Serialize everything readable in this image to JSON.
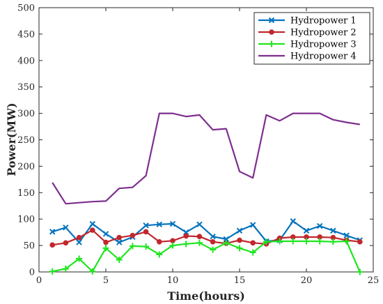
{
  "chart_data": {
    "type": "line",
    "xlabel": "Time(hours)",
    "ylabel": "Power(MW)",
    "xlim": [
      0,
      25
    ],
    "ylim": [
      0,
      500
    ],
    "xticks": [
      0,
      5,
      10,
      15,
      20,
      25
    ],
    "yticks": [
      0,
      50,
      100,
      150,
      200,
      250,
      300,
      350,
      400,
      450,
      500
    ],
    "grid": false,
    "legend": "top-right",
    "x": [
      1,
      2,
      3,
      4,
      5,
      6,
      7,
      8,
      9,
      10,
      11,
      12,
      13,
      14,
      15,
      16,
      17,
      18,
      19,
      20,
      21,
      22,
      23,
      24
    ],
    "series": [
      {
        "name": "Hydropower 1",
        "color": "#0072BD",
        "marker": "x-mark",
        "values": [
          76,
          84,
          56,
          91,
          72,
          56,
          66,
          88,
          90,
          91,
          75,
          90,
          67,
          62,
          78,
          89,
          58,
          60,
          96,
          78,
          87,
          78,
          69,
          60
        ]
      },
      {
        "name": "Hydropower 2",
        "color": "#C1272D",
        "marker": "circle",
        "values": [
          51,
          55,
          65,
          79,
          56,
          65,
          69,
          76,
          57,
          59,
          68,
          67,
          57,
          54,
          60,
          55,
          53,
          64,
          66,
          66,
          66,
          65,
          60,
          57
        ]
      },
      {
        "name": "Hydropower 3",
        "color": "#1EE61E",
        "marker": "plus",
        "values": [
          1,
          6,
          25,
          1,
          45,
          23,
          49,
          48,
          33,
          50,
          53,
          55,
          42,
          55,
          45,
          37,
          57,
          58,
          58,
          58,
          58,
          57,
          58,
          0
        ]
      },
      {
        "name": "Hydropower 4",
        "color": "#7E2F8E",
        "marker": "none",
        "values": [
          169,
          129,
          131,
          133,
          134,
          158,
          160,
          182,
          300,
          300,
          294,
          297,
          269,
          271,
          190,
          178,
          297,
          286,
          300,
          300,
          300,
          288,
          283,
          279
        ]
      }
    ]
  }
}
